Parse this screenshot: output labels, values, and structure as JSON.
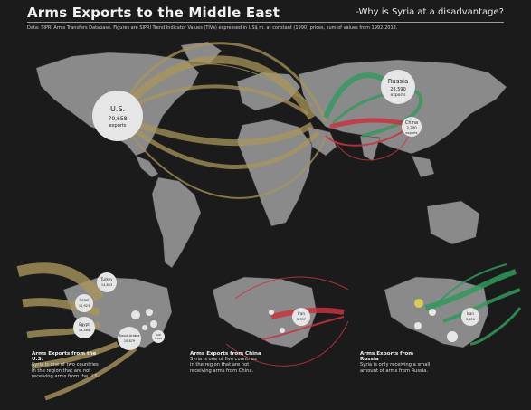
{
  "header": {
    "title": "Arms Exports to the Middle East",
    "subtitle": "-Why is Syria at a disadvantage?",
    "source": "Data: SIPRI Arms Transfers Database. Figures are SIPRI Trend Indicator Values (TIVs) expressed in US$ m. at constant (1990) prices, sum of values from 1992-2012."
  },
  "colors": {
    "background": "#1b1b1b",
    "land": "#8a8a8a",
    "us": "#a8955a",
    "russia": "#2e9a5c",
    "china": "#c8323f",
    "bubble": "#e6e6e6"
  },
  "exporters": {
    "us": {
      "name": "U.S.",
      "value": "70,658",
      "unit": "exports"
    },
    "russia": {
      "name": "Russia",
      "value": "28,590",
      "unit": "exports"
    },
    "china": {
      "name": "China",
      "value": "3,300",
      "unit": "exports"
    }
  },
  "inset_us": {
    "heading": "Arms Exports from the U.S.",
    "text": "Syria is one of two countries in the region that are not receiving arms from the U.S.",
    "bubbles": [
      {
        "name": "Turkey",
        "value": "14,833"
      },
      {
        "name": "Israel",
        "value": "11,923"
      },
      {
        "name": "Egypt",
        "value": "16,584"
      },
      {
        "name": "Saudi Arabia",
        "value": "10,879"
      },
      {
        "name": "UAE",
        "value": "5,995"
      }
    ]
  },
  "inset_china": {
    "heading": "Arms Exports from China",
    "text": "Syria is one of five countries in the region that are not receiving arms from China.",
    "bubbles": [
      {
        "name": "Iran",
        "value": "2,357"
      }
    ]
  },
  "inset_russia": {
    "heading": "Arms Exports from Russia",
    "text": "Syria is only receiving a small amount of arms from Russia.",
    "bubbles": [
      {
        "name": "Syria",
        "value": ""
      },
      {
        "name": "Iran",
        "value": "3,450"
      },
      {
        "name": "UAE",
        "value": ""
      }
    ]
  }
}
